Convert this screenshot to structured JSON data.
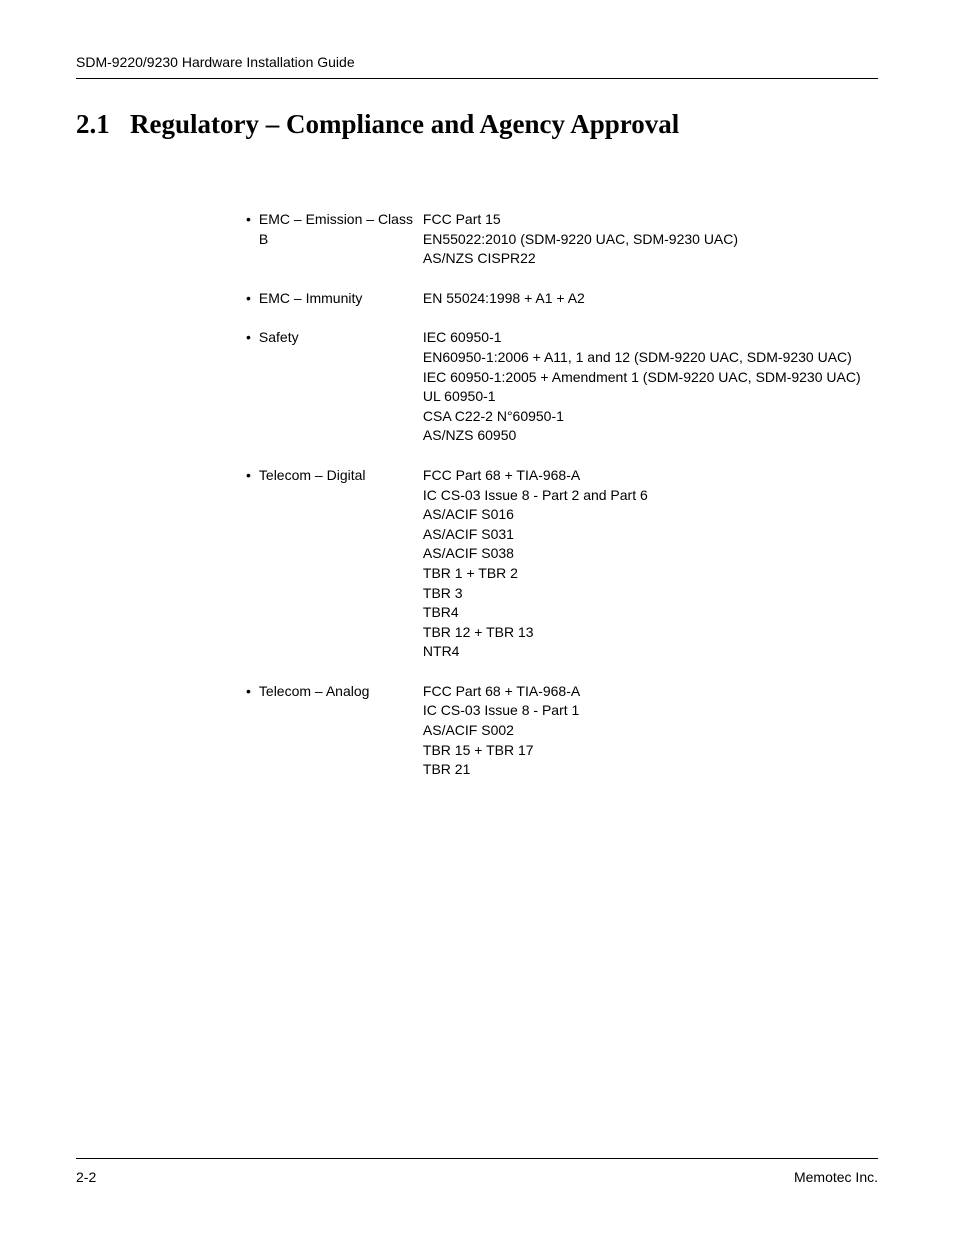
{
  "header": {
    "title": "SDM-9220/9230 Hardware Installation Guide"
  },
  "section": {
    "number": "2.1",
    "title": "Regulatory – Compliance and Agency Approval"
  },
  "compliance": [
    {
      "category": "EMC – Emission – Class B",
      "details": [
        "FCC Part 15",
        "EN55022:2010 (SDM-9220 UAC, SDM-9230 UAC)",
        "AS/NZS CISPR22"
      ]
    },
    {
      "category": "EMC – Immunity",
      "details": [
        "EN 55024:1998 + A1 + A2"
      ]
    },
    {
      "category": "Safety",
      "details": [
        "IEC 60950-1",
        "EN60950-1:2006 + A11, 1 and 12 (SDM-9220 UAC, SDM-9230 UAC)",
        "IEC 60950-1:2005 + Amendment 1  (SDM-9220 UAC, SDM-9230 UAC)",
        "UL 60950-1",
        "CSA C22-2 N°60950-1",
        "AS/NZS 60950"
      ]
    },
    {
      "category": "Telecom – Digital",
      "details": [
        "FCC Part 68 + TIA-968-A",
        "IC CS-03 Issue 8 - Part 2 and Part 6",
        "AS/ACIF S016",
        "AS/ACIF S031",
        "AS/ACIF S038",
        "TBR 1 + TBR 2",
        "TBR 3",
        "TBR4",
        "TBR 12 + TBR 13",
        "NTR4"
      ]
    },
    {
      "category": "Telecom – Analog",
      "details": [
        "FCC Part 68 + TIA-968-A",
        "IC CS-03 Issue 8 - Part 1",
        "AS/ACIF S002",
        "TBR 15 + TBR 17",
        "TBR 21"
      ]
    }
  ],
  "footer": {
    "page": "2-2",
    "company": "Memotec Inc."
  }
}
